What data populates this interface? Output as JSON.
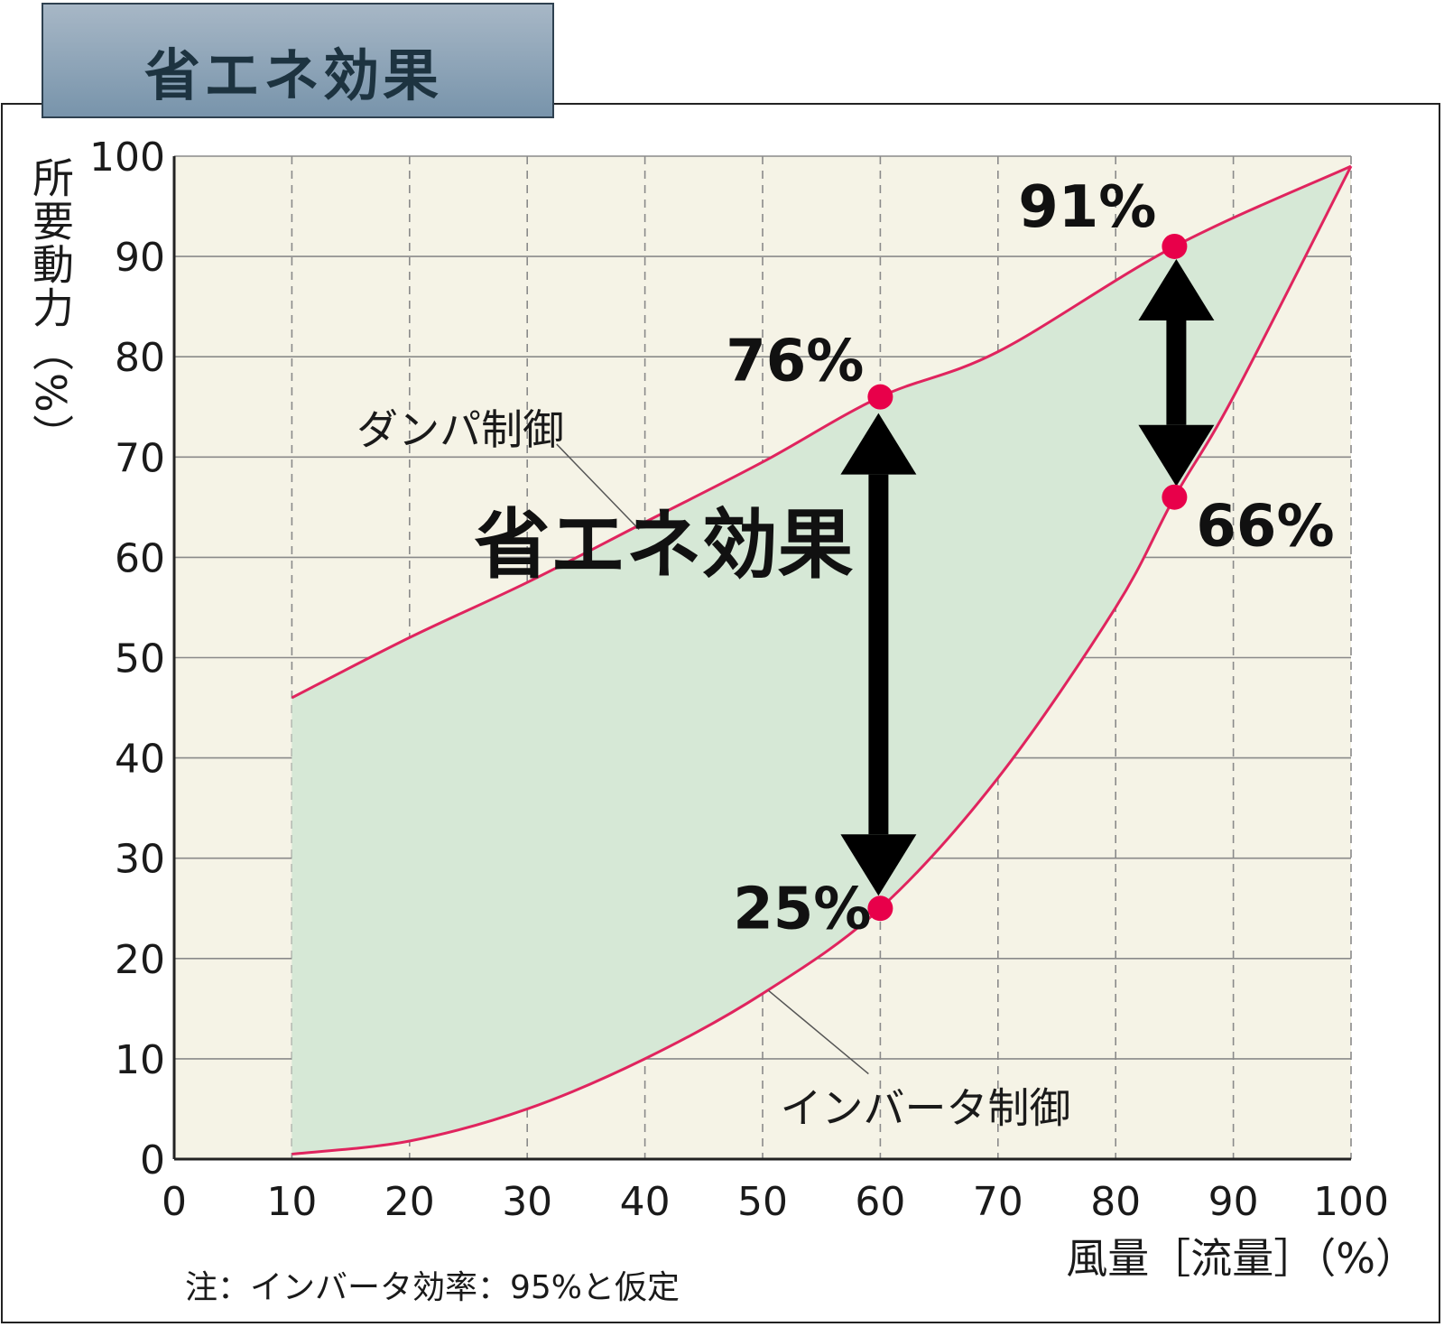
{
  "title": "省エネ効果",
  "note": "注：インバータ効率：95%と仮定",
  "colors": {
    "background": "#f5f3e6",
    "fill": "#d6e8d6",
    "line": "#e0245e",
    "point": "#e8004a",
    "grid": "#8a8a8a"
  },
  "chart_data": {
    "type": "area",
    "title": "省エネ効果",
    "xlabel": "風量［流量］（%）",
    "ylabel": "所要動力（%）",
    "xlim": [
      0,
      100
    ],
    "ylim": [
      0,
      100
    ],
    "x_ticks": [
      "0",
      "10",
      "20",
      "30",
      "40",
      "50",
      "60",
      "70",
      "80",
      "90",
      "100"
    ],
    "y_ticks": [
      "0",
      "10",
      "20",
      "30",
      "40",
      "50",
      "60",
      "70",
      "80",
      "90",
      "100"
    ],
    "grid": true,
    "series": [
      {
        "name": "ダンパ制御",
        "x": [
          10,
          20,
          30,
          40,
          50,
          60,
          70,
          85,
          100
        ],
        "y": [
          46,
          52,
          57.5,
          63.5,
          69.5,
          76,
          80.5,
          91,
          99
        ]
      },
      {
        "name": "インバータ制御",
        "x": [
          10,
          20,
          30,
          40,
          50,
          60,
          70,
          80,
          85,
          90,
          100
        ],
        "y": [
          0.5,
          1.8,
          5,
          10,
          16.5,
          25,
          38,
          55,
          66,
          76,
          99
        ]
      }
    ],
    "highlight_points": [
      {
        "x": 60,
        "y": 76,
        "label": "76%"
      },
      {
        "x": 60,
        "y": 25,
        "label": "25%"
      },
      {
        "x": 85,
        "y": 91,
        "label": "91%"
      },
      {
        "x": 85,
        "y": 66,
        "label": "66%"
      }
    ],
    "annotations": [
      {
        "text": "省エネ効果"
      }
    ]
  }
}
